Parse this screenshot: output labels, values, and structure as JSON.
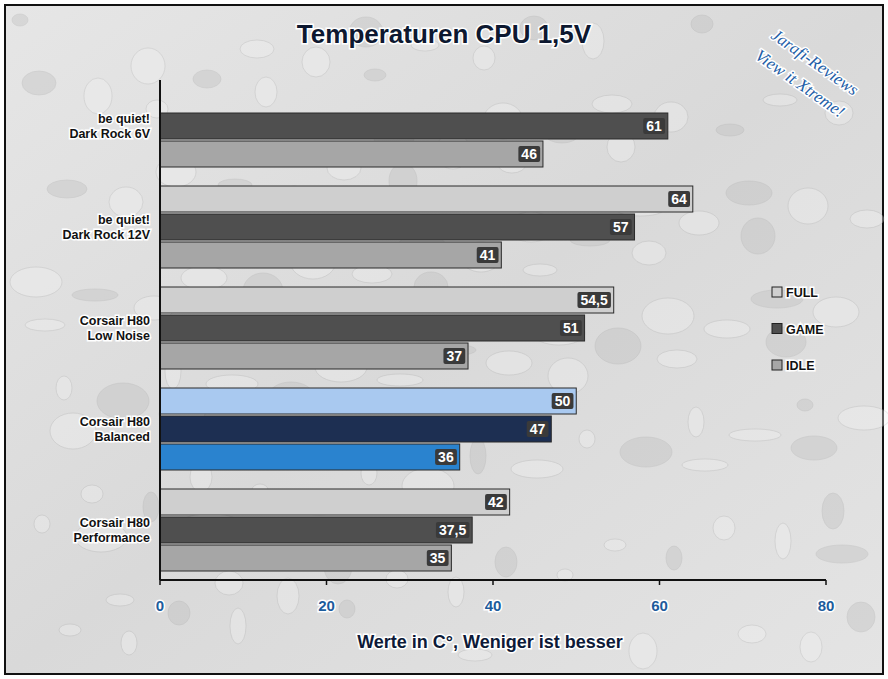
{
  "chart_data": {
    "type": "bar",
    "orientation": "horizontal",
    "title": "Temperaturen CPU 1,5V",
    "x_label": "Werte in C°, Weniger ist besser",
    "annotations": [
      "Jarafi-Reviews",
      "View it Xtreme!"
    ],
    "categories": [
      "be quiet!\nDark Rock 6V",
      "be quiet!\nDark Rock 12V",
      "Corsair H80\nLow Noise",
      "Corsair H80\nBalanced",
      "Corsair H80\nPerformance"
    ],
    "series": [
      {
        "name": "FULL",
        "color": "#cfcfcf",
        "colors": [
          "#cfcfcf",
          "#cfcfcf",
          "#cfcfcf",
          "#a9c9f0",
          "#cfcfcf"
        ],
        "values": [
          null,
          64,
          54.5,
          50,
          42
        ],
        "value_labels": [
          null,
          "64",
          "54,5",
          "50",
          "42"
        ]
      },
      {
        "name": "GAME",
        "color": "#4f4f4f",
        "colors": [
          "#4f4f4f",
          "#4f4f4f",
          "#4f4f4f",
          "#1d2f52",
          "#4f4f4f"
        ],
        "values": [
          61,
          57,
          51,
          47,
          37.5
        ],
        "value_labels": [
          "61",
          "57",
          "51",
          "47",
          "37,5"
        ]
      },
      {
        "name": "IDLE",
        "color": "#a6a6a6",
        "colors": [
          "#a6a6a6",
          "#a6a6a6",
          "#a6a6a6",
          "#2a83cf",
          "#a6a6a6"
        ],
        "values": [
          46,
          41,
          37,
          36,
          35
        ],
        "value_labels": [
          "46",
          "41",
          "37",
          "36",
          "35"
        ]
      }
    ],
    "xlim": [
      0,
      80
    ],
    "xticks": [
      0,
      20,
      40,
      60,
      80
    ],
    "grid": false,
    "legend": "right",
    "data_labels": true
  }
}
